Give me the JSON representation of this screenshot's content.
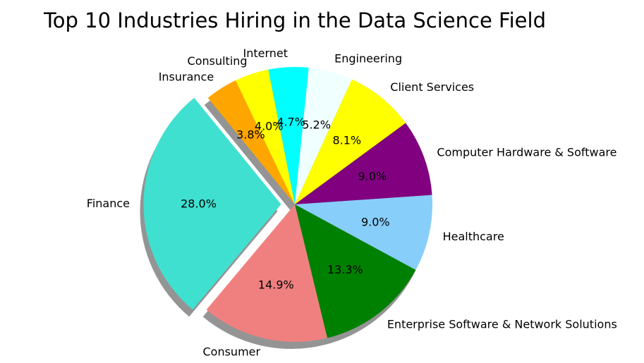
{
  "chart_data": {
    "type": "pie",
    "title": "Top 10 Industries Hiring in the Data Science Field",
    "start_angle_deg": 230,
    "direction": "clockwise",
    "shadow": true,
    "slices": [
      {
        "label": "Finance",
        "value": 28.0,
        "pct_label": "28.0%",
        "color": "#40e0d0",
        "explode": 0.1
      },
      {
        "label": "Insurance",
        "value": 3.8,
        "pct_label": "3.8%",
        "color": "#ffa500",
        "explode": 0
      },
      {
        "label": "Consulting",
        "value": 4.0,
        "pct_label": "4.0%",
        "color": "#ffff00",
        "explode": 0
      },
      {
        "label": "Internet",
        "value": 4.7,
        "pct_label": "4.7%",
        "color": "#00ffff",
        "explode": 0
      },
      {
        "label": "Engineering",
        "value": 5.2,
        "pct_label": "5.2%",
        "color": "#f0ffff",
        "explode": 0
      },
      {
        "label": "Client Services",
        "value": 8.1,
        "pct_label": "8.1%",
        "color": "#ffff00",
        "explode": 0
      },
      {
        "label": "Computer Hardware & Software",
        "value": 9.0,
        "pct_label": "9.0%",
        "color": "#800080",
        "explode": 0
      },
      {
        "label": "Healthcare",
        "value": 9.0,
        "pct_label": "9.0%",
        "color": "#87cefa",
        "explode": 0
      },
      {
        "label": "Enterprise Software & Network Solutions",
        "value": 13.3,
        "pct_label": "13.3%",
        "color": "#008000",
        "explode": 0
      },
      {
        "label": "Consumer",
        "value": 14.9,
        "pct_label": "14.9%",
        "color": "#f08080",
        "explode": 0
      }
    ]
  }
}
